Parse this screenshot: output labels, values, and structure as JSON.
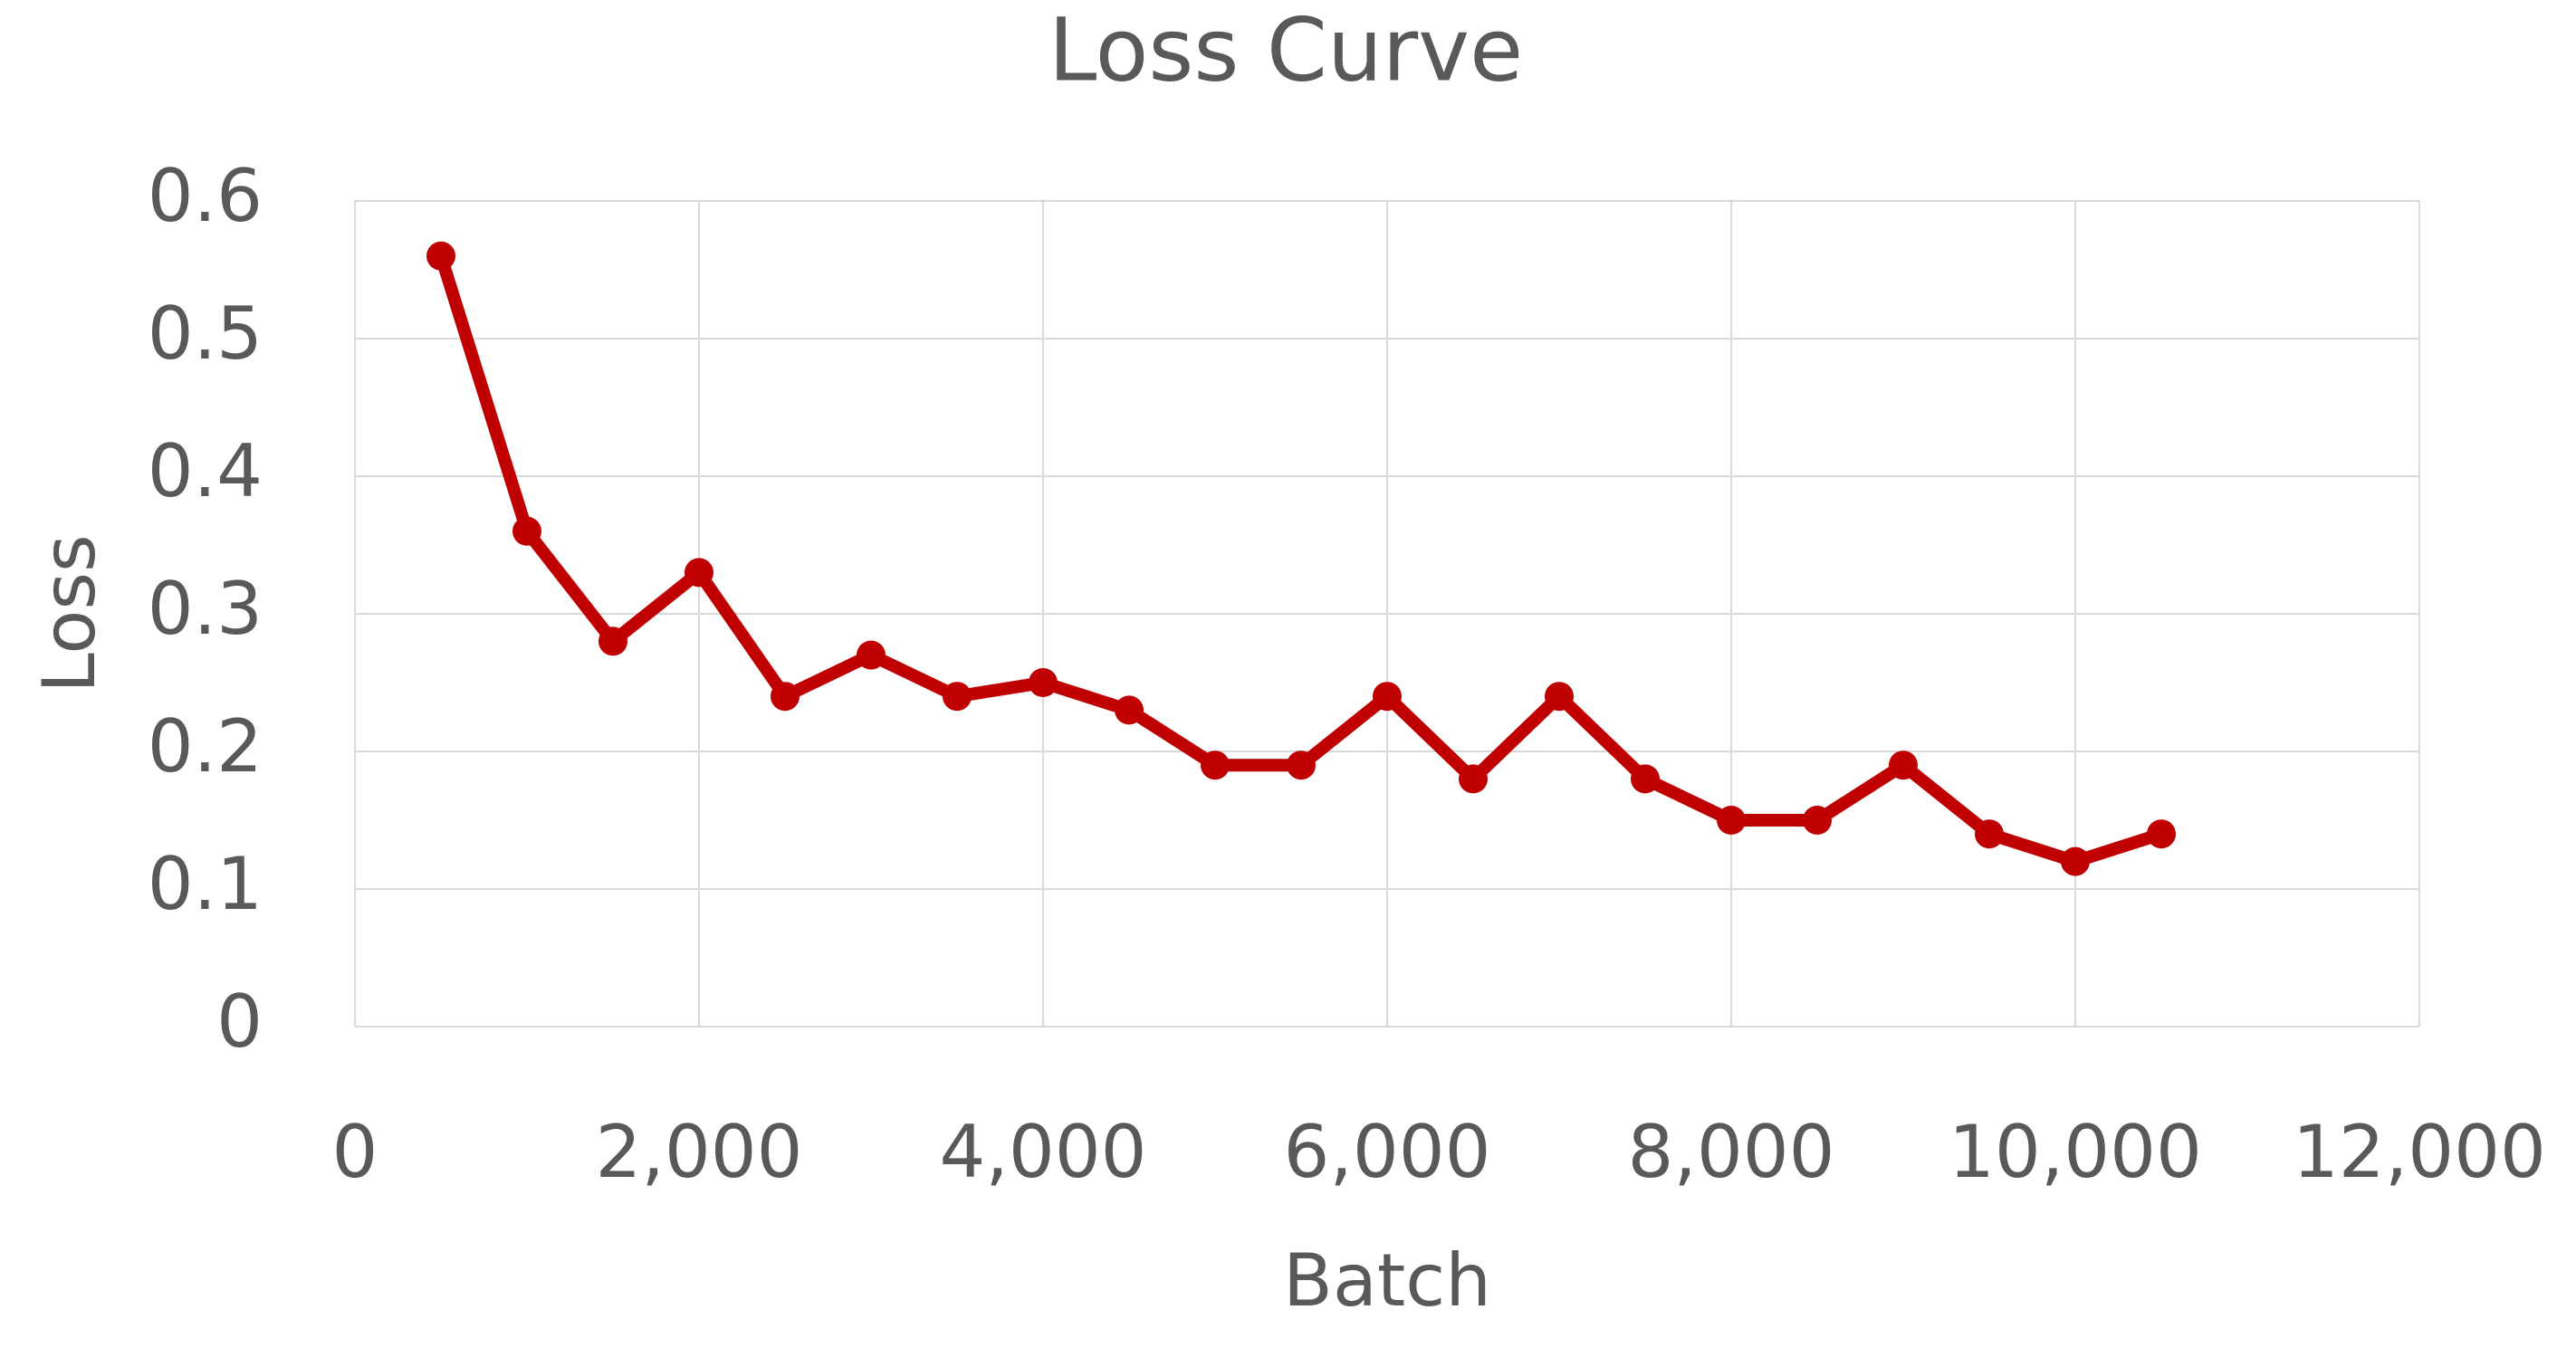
{
  "chart_data": {
    "type": "line",
    "title": "Loss Curve",
    "x_label": "Batch",
    "y_label": "Loss",
    "x": [
      500,
      1000,
      1500,
      2000,
      2500,
      3000,
      3500,
      4000,
      4500,
      5000,
      5500,
      6000,
      6500,
      7000,
      7500,
      8000,
      8500,
      9000,
      9500,
      10000,
      10500
    ],
    "series": [
      {
        "name": "Loss",
        "color": "#c00000",
        "values": [
          0.56,
          0.36,
          0.28,
          0.33,
          0.24,
          0.27,
          0.24,
          0.25,
          0.23,
          0.19,
          0.19,
          0.24,
          0.18,
          0.24,
          0.18,
          0.15,
          0.15,
          0.19,
          0.14,
          0.12,
          0.14
        ]
      }
    ],
    "xlim": [
      0,
      12000
    ],
    "xticks": [
      0,
      {
        "value": 2000,
        "label": "2,000"
      },
      {
        "value": 4000,
        "label": "4,000"
      },
      {
        "value": 6000,
        "label": "6,000"
      },
      {
        "value": 8000,
        "label": "8,000"
      },
      {
        "value": 10000,
        "label": "10,000"
      },
      {
        "value": 12000,
        "label": "12,000"
      }
    ],
    "ylim": [
      0,
      0.6
    ],
    "yticks": [
      0,
      0.1,
      0.2,
      0.3,
      0.4,
      0.5,
      0.6
    ],
    "grid": true
  }
}
